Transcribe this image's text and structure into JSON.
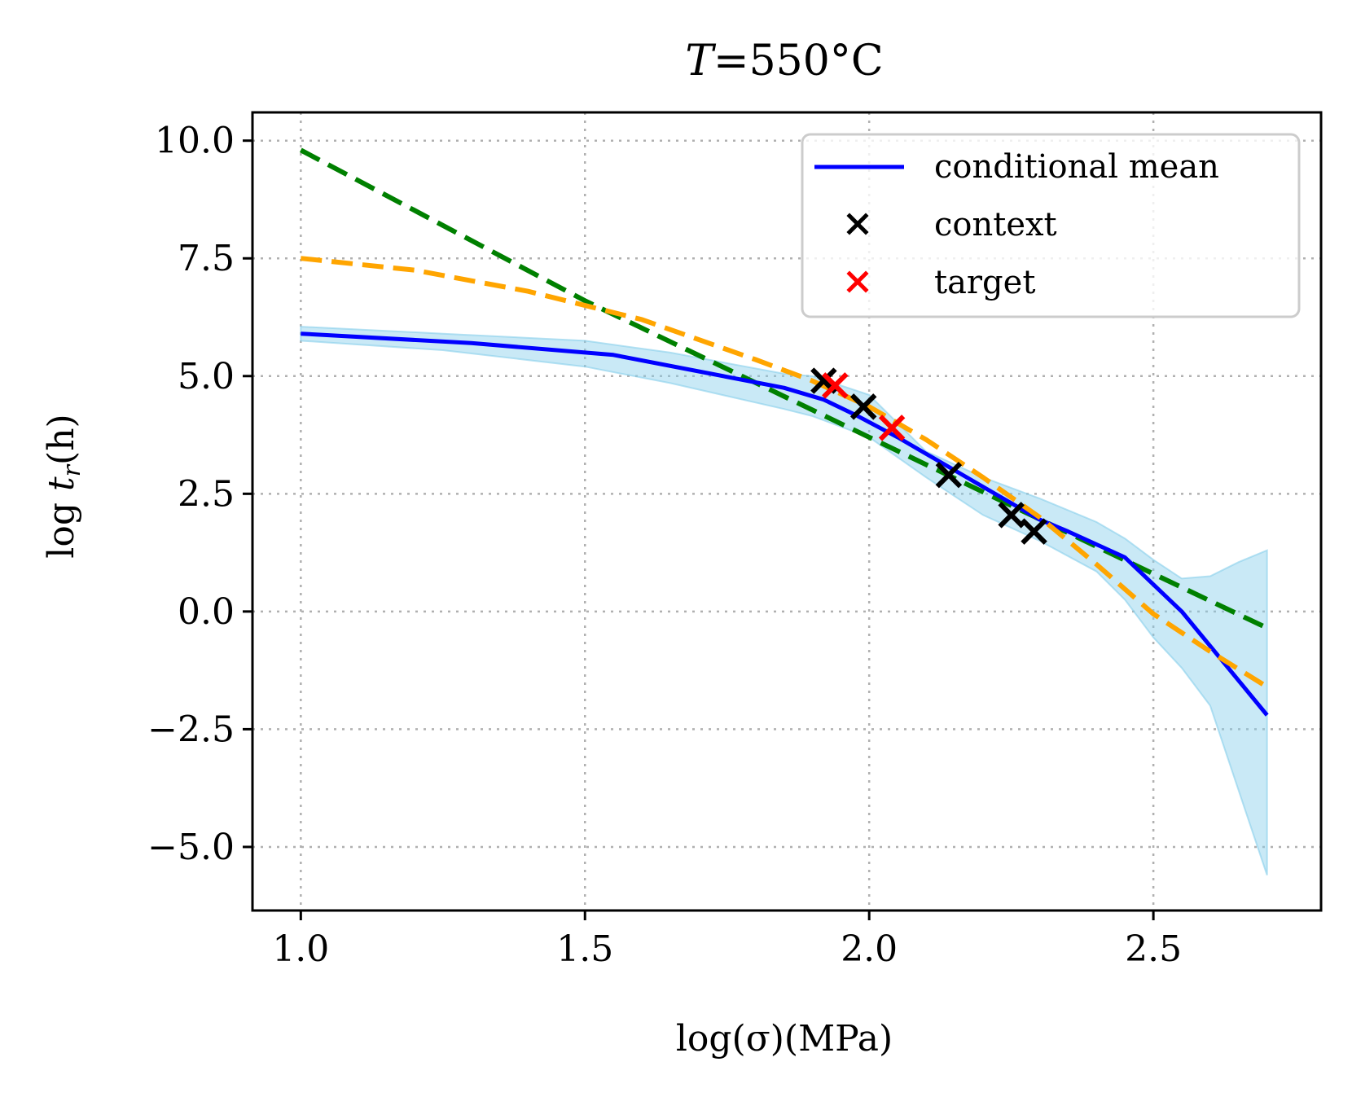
{
  "chart_data": {
    "type": "line",
    "title": "T=550°C",
    "title_parts": {
      "var": "T",
      "rest": "=550°C"
    },
    "xlabel": "log(σ)(MPa)",
    "ylabel": "log t_r(h)",
    "ylabel_parts": {
      "log": "log ",
      "t": "t",
      "sub": "r",
      "unit": "(h)"
    },
    "xlim": [
      0.915,
      2.795
    ],
    "ylim": [
      -6.35,
      10.6
    ],
    "xticks": [
      1.0,
      1.5,
      2.0,
      2.5
    ],
    "xtick_labels": [
      "1.0",
      "1.5",
      "2.0",
      "2.5"
    ],
    "yticks": [
      10.0,
      7.5,
      5.0,
      2.5,
      0.0,
      -2.5,
      -5.0
    ],
    "ytick_labels": [
      "10.0",
      "7.5",
      "5.0",
      "2.5",
      "0.0",
      "−2.5",
      "−5.0"
    ],
    "grid": true,
    "legend_position": "top-right",
    "legend": {
      "conditional_mean": "conditional mean",
      "context": "context",
      "target": "target"
    },
    "colors": {
      "mean": "#0000ff",
      "band": "#87ceeb",
      "green": "#008000",
      "orange": "#ffa500",
      "context": "#000000",
      "target": "#ff0000",
      "grid": "#b0b0b0"
    },
    "series": [
      {
        "name": "conditional mean",
        "style": "solid",
        "x": [
          1.0,
          1.3,
          1.55,
          1.85,
          1.92,
          1.98,
          2.05,
          2.15,
          2.25,
          2.3,
          2.35,
          2.45,
          2.55,
          2.7
        ],
        "y": [
          5.9,
          5.7,
          5.45,
          4.75,
          4.5,
          4.15,
          3.7,
          3.0,
          2.3,
          1.95,
          1.7,
          1.15,
          0.0,
          -2.2
        ]
      },
      {
        "name": "green fit",
        "style": "dashed",
        "x": [
          1.0,
          1.5,
          2.0,
          2.5,
          2.7
        ],
        "y": [
          9.8,
          6.6,
          3.7,
          0.8,
          -0.35
        ]
      },
      {
        "name": "orange fit",
        "style": "dashed",
        "x": [
          1.0,
          1.2,
          1.4,
          1.6,
          1.8,
          1.9,
          2.0,
          2.1,
          2.2,
          2.3,
          2.4,
          2.5,
          2.6,
          2.7
        ],
        "y": [
          7.5,
          7.25,
          6.8,
          6.2,
          5.35,
          4.9,
          4.35,
          3.65,
          2.85,
          2.0,
          1.0,
          -0.05,
          -0.85,
          -1.6
        ]
      }
    ],
    "band": {
      "name": "uncertainty band",
      "x": [
        1.0,
        1.25,
        1.5,
        1.65,
        1.85,
        1.9,
        2.0,
        2.1,
        2.2,
        2.3,
        2.4,
        2.45,
        2.5,
        2.55,
        2.6,
        2.65,
        2.7
      ],
      "upper": [
        6.05,
        5.9,
        5.75,
        5.5,
        5.05,
        5.0,
        4.6,
        3.4,
        2.85,
        2.4,
        1.9,
        1.55,
        1.1,
        0.7,
        0.75,
        1.05,
        1.3
      ],
      "lower": [
        5.75,
        5.55,
        5.2,
        4.85,
        4.3,
        4.15,
        3.7,
        2.85,
        2.05,
        1.5,
        0.85,
        0.25,
        -0.55,
        -1.2,
        -2.0,
        -3.8,
        -5.6
      ]
    },
    "context_points": {
      "x": [
        1.92,
        1.99,
        2.14,
        2.25,
        2.29
      ],
      "y": [
        4.9,
        4.35,
        2.9,
        2.05,
        1.7
      ]
    },
    "target_points": {
      "x": [
        1.94,
        2.04
      ],
      "y": [
        4.8,
        3.9
      ]
    }
  }
}
